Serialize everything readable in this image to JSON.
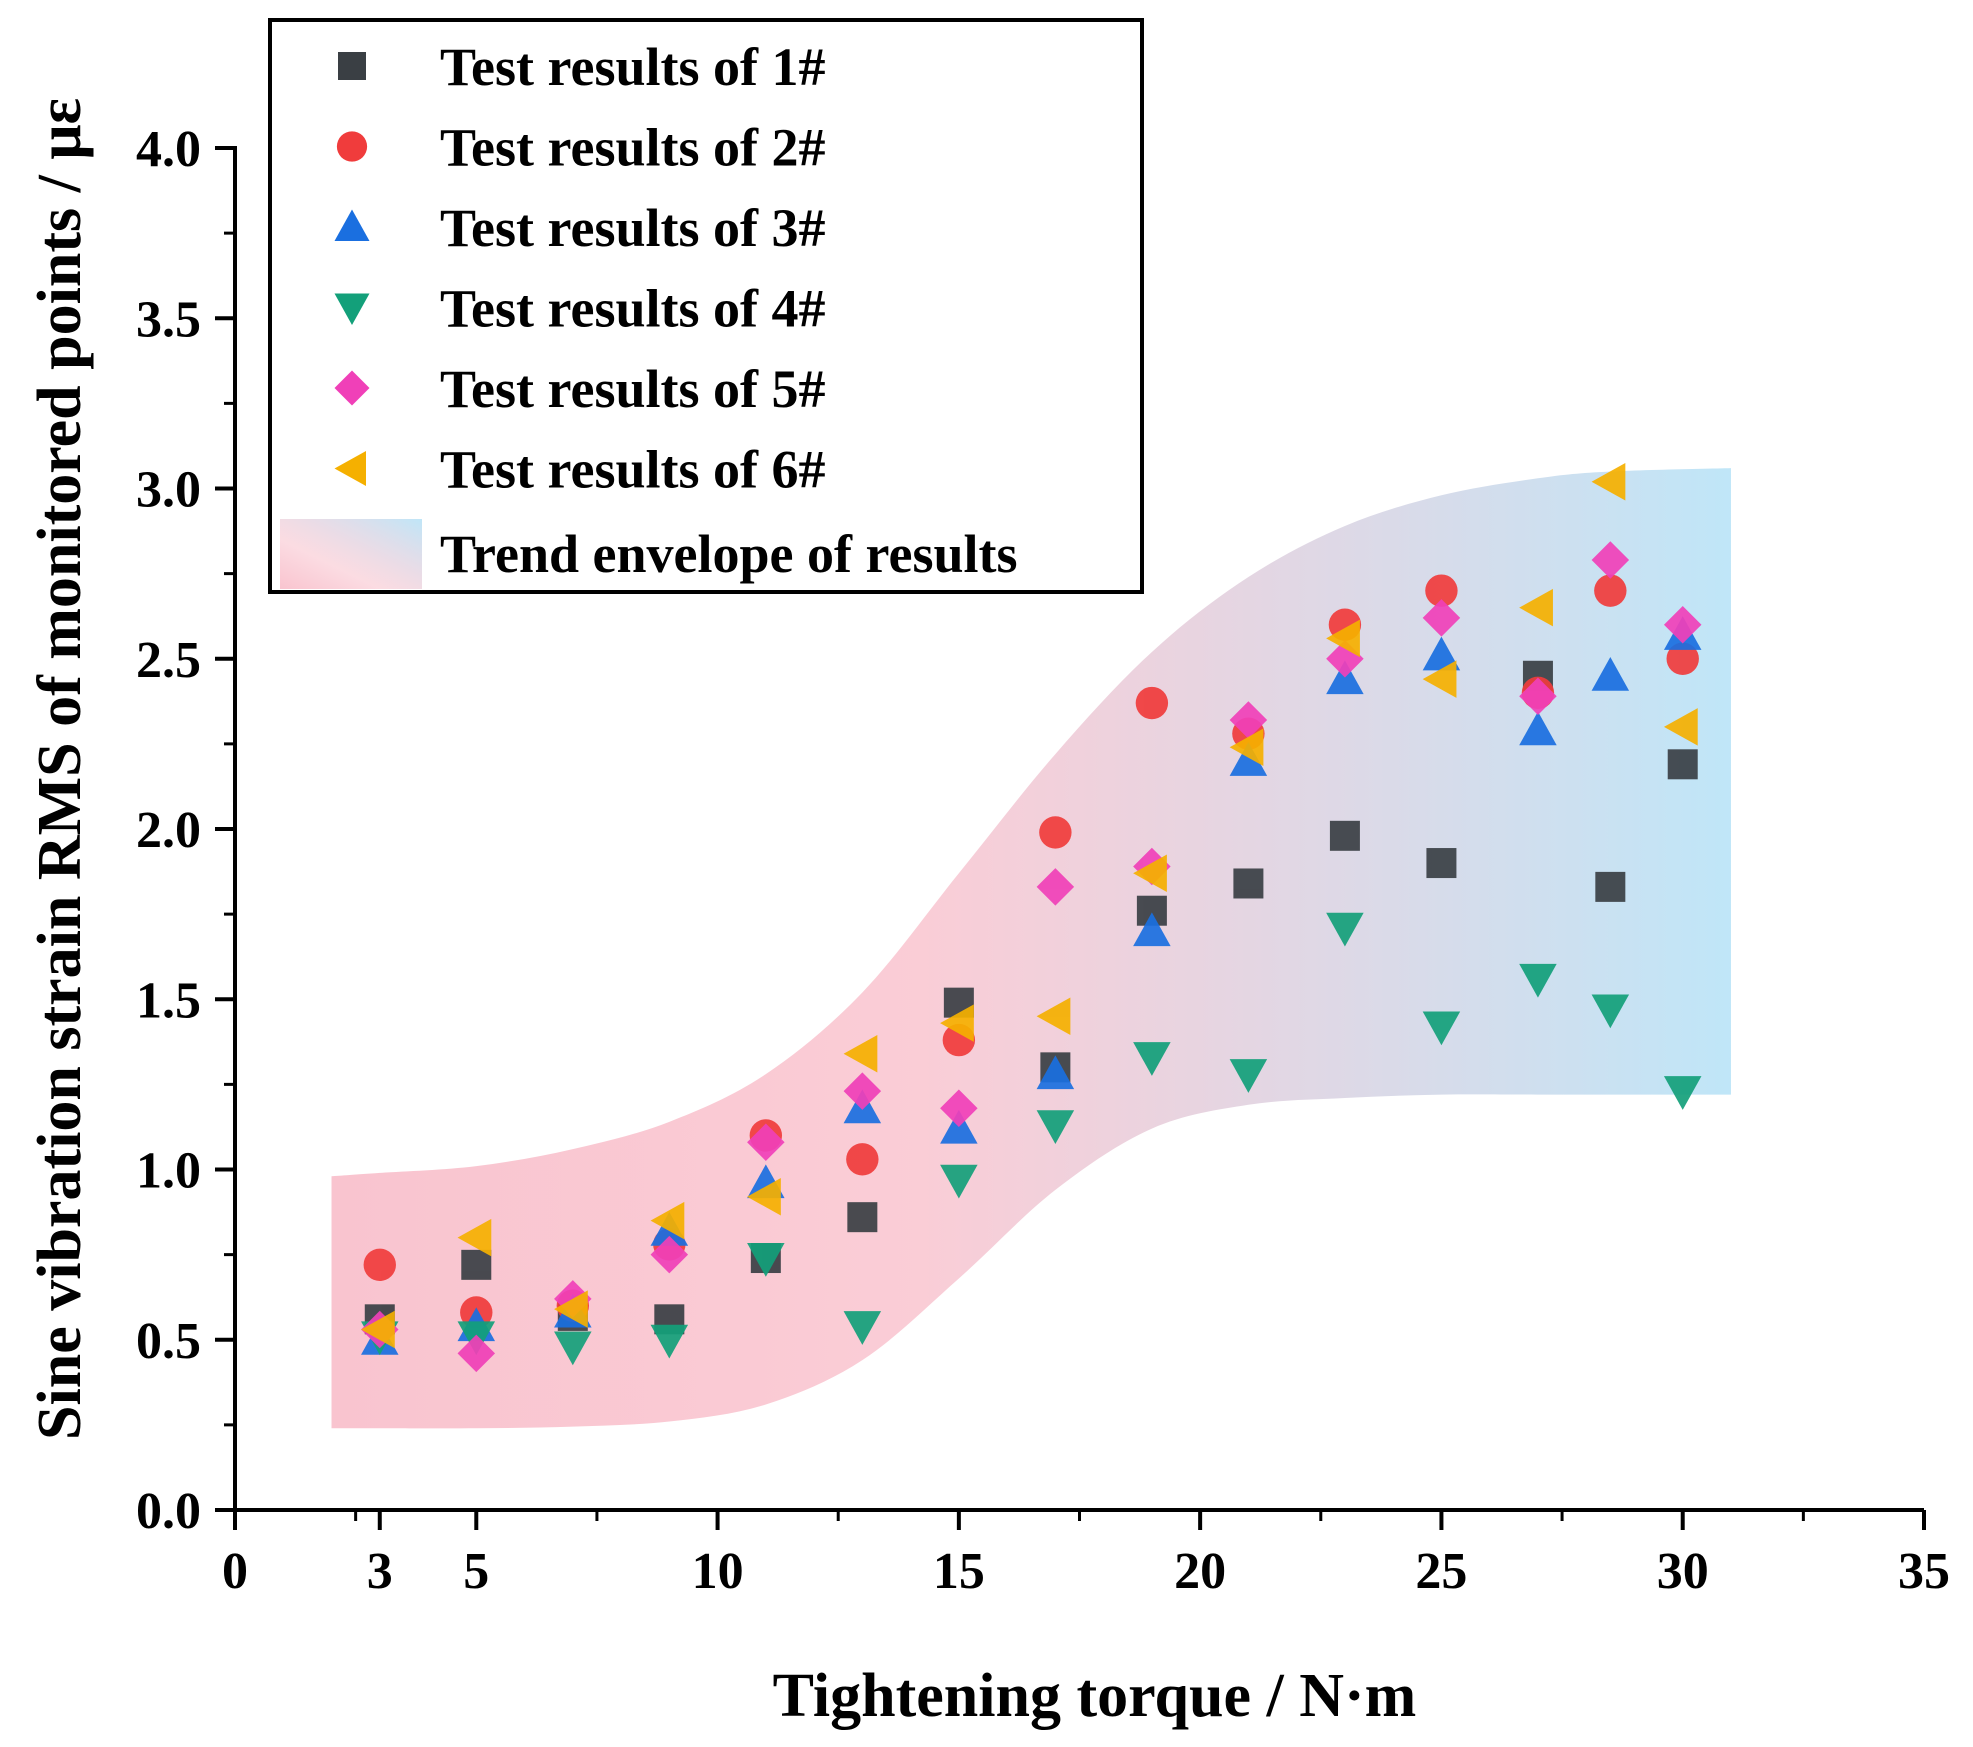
{
  "chart_data": {
    "type": "scatter",
    "title": "",
    "xlabel": "Tightening torque / N·m",
    "ylabel": "Sine vibration strain RMS of  monitored points / με",
    "xlim": [
      0,
      35
    ],
    "ylim": [
      0,
      4.0
    ],
    "x_ticks": [
      0,
      3,
      5,
      10,
      15,
      20,
      25,
      30,
      35
    ],
    "x_tick_labels": [
      "0",
      "3",
      "5",
      "10",
      "15",
      "20",
      "25",
      "30",
      "35"
    ],
    "y_ticks": [
      0,
      0.5,
      1.0,
      1.5,
      2.0,
      2.5,
      3.0,
      3.5,
      4.0
    ],
    "y_tick_labels": [
      "0.0",
      "0.5",
      "1.0",
      "1.5",
      "2.0",
      "2.5",
      "3.0",
      "3.5",
      "4.0"
    ],
    "grid": false,
    "legend_position": "top-left",
    "x": [
      3,
      5,
      7,
      9,
      11,
      13,
      15,
      17,
      19,
      21,
      23,
      25,
      27,
      28.5,
      30
    ],
    "series": [
      {
        "name": "Test results of 1#",
        "marker": "square",
        "color": "#3a3f44",
        "values": [
          0.56,
          0.72,
          0.57,
          0.56,
          0.74,
          0.86,
          1.49,
          1.3,
          1.76,
          1.84,
          1.98,
          1.9,
          2.45,
          1.83,
          2.19
        ]
      },
      {
        "name": "Test results of 2#",
        "marker": "circle",
        "color": "#f03c3c",
        "values": [
          0.72,
          0.58,
          0.6,
          0.78,
          1.1,
          1.03,
          1.38,
          1.99,
          2.37,
          2.28,
          2.6,
          2.7,
          2.4,
          2.7,
          2.5
        ]
      },
      {
        "name": "Test results of 3#",
        "marker": "triangle-up",
        "color": "#1a6fe0",
        "values": [
          0.5,
          0.54,
          0.58,
          0.82,
          0.96,
          1.18,
          1.12,
          1.28,
          1.7,
          2.2,
          2.44,
          2.51,
          2.29,
          2.45,
          2.57
        ]
      },
      {
        "name": "Test results of 4#",
        "marker": "triangle-down",
        "color": "#13a07a",
        "values": [
          0.51,
          0.51,
          0.48,
          0.5,
          0.74,
          0.54,
          0.97,
          1.13,
          1.33,
          1.28,
          1.71,
          1.42,
          1.56,
          1.47,
          1.23
        ]
      },
      {
        "name": "Test results of 5#",
        "marker": "diamond",
        "color": "#f040b8",
        "values": [
          0.53,
          0.46,
          0.62,
          0.75,
          1.08,
          1.23,
          1.18,
          1.83,
          1.89,
          2.32,
          2.5,
          2.62,
          2.39,
          2.79,
          2.6
        ]
      },
      {
        "name": "Test results of 6#",
        "marker": "triangle-left",
        "color": "#f5b000",
        "values": [
          0.53,
          0.8,
          0.59,
          0.85,
          0.92,
          1.34,
          1.43,
          1.45,
          1.87,
          2.24,
          2.56,
          2.44,
          2.65,
          3.02,
          2.3
        ]
      }
    ],
    "envelope": {
      "name": "Trend envelope of results",
      "color_low": "#f9c4cf",
      "color_high": "#bfe6f8",
      "x": [
        2.0,
        3,
        5,
        7,
        9,
        11,
        13,
        15,
        17,
        19,
        21,
        23,
        25,
        27,
        28.5,
        31
      ],
      "upper": [
        0.98,
        0.99,
        1.01,
        1.06,
        1.14,
        1.28,
        1.52,
        1.87,
        2.22,
        2.52,
        2.74,
        2.89,
        2.98,
        3.03,
        3.05,
        3.06
      ],
      "lower": [
        0.24,
        0.24,
        0.24,
        0.245,
        0.26,
        0.31,
        0.44,
        0.68,
        0.94,
        1.12,
        1.19,
        1.21,
        1.22,
        1.22,
        1.22,
        1.22
      ]
    }
  }
}
